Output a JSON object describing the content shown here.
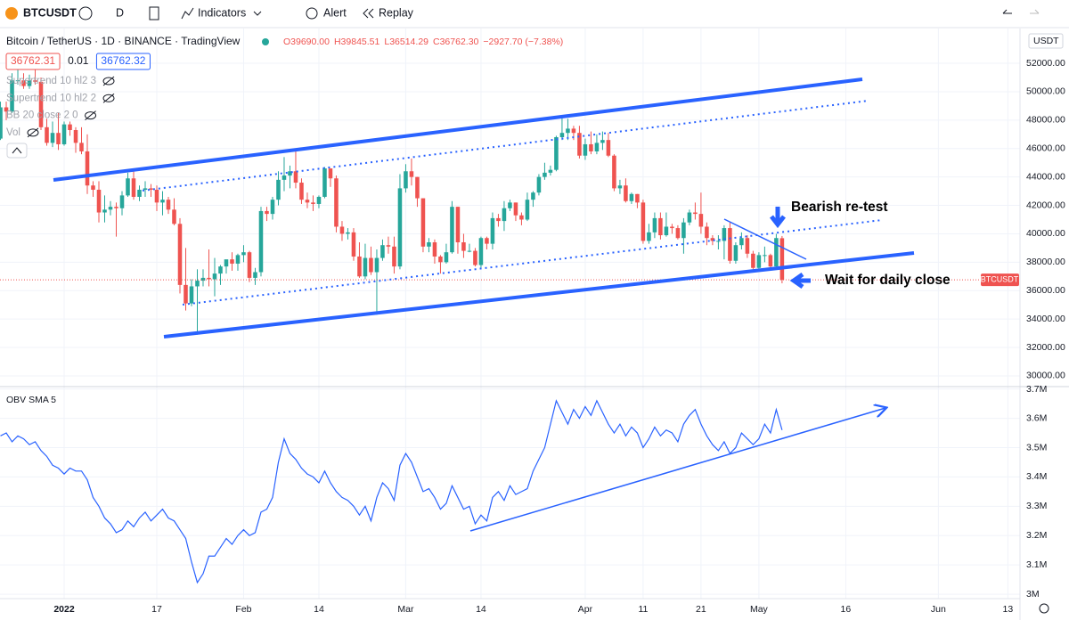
{
  "toolbar": {
    "symbol": "BTCUSDT",
    "interval": "D",
    "indicators": "Indicators",
    "alert": "Alert",
    "replay": "Replay"
  },
  "chart_data": [
    {
      "type": "candlestick",
      "title": "Bitcoin / TetherUS · 1D · BINANCE · TradingView",
      "ohlc_labels": [
        "O39690.00",
        "H39845.51",
        "L36514.29",
        "C36762.30"
      ],
      "change_label": "−2927.70 (−7.38%)",
      "price_badges": [
        "36762.31",
        "0.01",
        "36762.32"
      ],
      "indicators": [
        "Supertrend 10 hl2 3",
        "Supertrend 10 hl2 2",
        "BB 20 close 2 0",
        "Vol"
      ],
      "currency": "USDT",
      "price_tag": "BTCUSDT",
      "annotations": [
        "Bearish re-test",
        "Wait for daily close"
      ],
      "up_color": "#26a69a",
      "down_color": "#ef5350",
      "grid": true,
      "xlim": [
        -11.08,
        165.1
      ],
      "xticks": [
        {
          "value": 0,
          "label": "2022"
        },
        {
          "value": 16,
          "label": "17"
        },
        {
          "value": 31,
          "label": "Feb"
        },
        {
          "value": 44,
          "label": "14"
        },
        {
          "value": 59,
          "label": "Mar"
        },
        {
          "value": 72,
          "label": "14"
        },
        {
          "value": 90,
          "label": "Apr"
        },
        {
          "value": 100,
          "label": "11"
        },
        {
          "value": 110,
          "label": "21"
        },
        {
          "value": 120,
          "label": "May"
        },
        {
          "value": 135,
          "label": "16"
        },
        {
          "value": 151,
          "label": "Jun"
        },
        {
          "value": 163,
          "label": "13"
        }
      ],
      "ylim": [
        29370,
        54260
      ],
      "yticks": [
        {
          "value": 30000,
          "label": "30000.00"
        },
        {
          "value": 32000,
          "label": "32000.00"
        },
        {
          "value": 34000,
          "label": "34000.00"
        },
        {
          "value": 36000,
          "label": "36000.00"
        },
        {
          "value": 38000,
          "label": "38000.00"
        },
        {
          "value": 40000,
          "label": "40000.00"
        },
        {
          "value": 42000,
          "label": "42000.00"
        },
        {
          "value": 44000,
          "label": "44000.00"
        },
        {
          "value": 46000,
          "label": "46000.00"
        },
        {
          "value": 48000,
          "label": "48000.00"
        },
        {
          "value": 50000,
          "label": "50000.00"
        },
        {
          "value": 52000,
          "label": "52000.00"
        }
      ],
      "x": [
        -11,
        -10,
        -9,
        -8,
        -7,
        -6,
        -5,
        -4,
        -3,
        -2,
        -1,
        0,
        1,
        2,
        3,
        4,
        5,
        6,
        7,
        8,
        9,
        10,
        11,
        12,
        13,
        14,
        15,
        16,
        17,
        18,
        19,
        20,
        21,
        22,
        23,
        24,
        25,
        26,
        27,
        28,
        29,
        30,
        31,
        32,
        33,
        34,
        35,
        36,
        37,
        38,
        39,
        40,
        41,
        42,
        43,
        44,
        45,
        46,
        47,
        48,
        49,
        50,
        51,
        52,
        53,
        54,
        55,
        56,
        57,
        58,
        59,
        60,
        61,
        62,
        63,
        64,
        65,
        66,
        67,
        68,
        69,
        70,
        71,
        72,
        73,
        74,
        75,
        76,
        77,
        78,
        79,
        80,
        81,
        82,
        83,
        84,
        85,
        86,
        87,
        88,
        89,
        90,
        91,
        92,
        93,
        94,
        95,
        96,
        97,
        98,
        99,
        100,
        101,
        102,
        103,
        104,
        105,
        106,
        107,
        108,
        109,
        110,
        111,
        112,
        113,
        114,
        115,
        116,
        117,
        118,
        119,
        120,
        121,
        122,
        123,
        124
      ],
      "open": [
        46700,
        48900,
        48600,
        50800,
        50800,
        50400,
        50800,
        50700,
        47500,
        46400,
        47100,
        46300,
        47700,
        47300,
        46400,
        45800,
        43400,
        43100,
        41500,
        41700,
        41900,
        41800,
        42700,
        43900,
        42600,
        43100,
        43200,
        43100,
        42200,
        42400,
        41700,
        40700,
        36400,
        35100,
        36300,
        36700,
        36900,
        36800,
        37200,
        37700,
        38200,
        37900,
        38500,
        38700,
        36900,
        37300,
        41600,
        41400,
        42400,
        43800,
        44100,
        44400,
        43600,
        42400,
        42200,
        42100,
        42600,
        44600,
        43900,
        40500,
        40000,
        40100,
        38400,
        37000,
        38300,
        37300,
        38300,
        39200,
        39100,
        37700,
        43200,
        44400,
        44000,
        42500,
        39100,
        39400,
        38400,
        38000,
        38700,
        41900,
        39400,
        38800,
        38800,
        37800,
        39700,
        39300,
        41100,
        40900,
        41800,
        42200,
        41300,
        41000,
        42400,
        42900,
        44000,
        44300,
        44500,
        46800,
        47100,
        47400,
        47100,
        45500,
        46300,
        45800,
        46400,
        46600,
        45500,
        43200,
        43400,
        42300,
        42800,
        42200,
        39500,
        40100,
        41100,
        39900,
        40500,
        40400,
        39700,
        40800,
        41500,
        41400,
        40500,
        39700,
        39500,
        39500,
        40400,
        38100,
        39200,
        39700,
        38600,
        37600,
        38500,
        38500,
        37700,
        39690
      ],
      "high": [
        49300,
        49300,
        51300,
        51800,
        51300,
        51200,
        52000,
        51000,
        48100,
        47900,
        48500,
        47900,
        47900,
        47500,
        47500,
        47000,
        43700,
        43700,
        42700,
        42300,
        42200,
        43000,
        44300,
        44400,
        43400,
        43700,
        43500,
        43400,
        43000,
        42600,
        42500,
        41100,
        39000,
        36800,
        37500,
        37500,
        38900,
        38300,
        37800,
        38000,
        38700,
        38600,
        39200,
        38800,
        37600,
        41900,
        41900,
        42600,
        44400,
        45400,
        44800,
        45800,
        43900,
        42900,
        42700,
        42700,
        44700,
        44500,
        44100,
        40900,
        40400,
        40400,
        39400,
        39300,
        39100,
        38900,
        39600,
        39800,
        39800,
        44200,
        44900,
        45300,
        44000,
        42500,
        39700,
        39600,
        38500,
        39300,
        42300,
        41900,
        40000,
        39300,
        39000,
        39800,
        39800,
        41500,
        41400,
        42300,
        42400,
        42200,
        41500,
        42900,
        43000,
        44200,
        45000,
        44800,
        46900,
        48200,
        48100,
        47600,
        47600,
        46700,
        47200,
        47000,
        47200,
        47100,
        45600,
        43800,
        43900,
        42900,
        42800,
        42400,
        40700,
        41500,
        41500,
        41500,
        40700,
        40600,
        41100,
        41700,
        42200,
        42900,
        40800,
        39900,
        39900,
        40600,
        40800,
        39400,
        40100,
        39900,
        38800,
        38700,
        39100,
        38600,
        40000,
        39845.51
      ],
      "low": [
        46600,
        48000,
        48500,
        50500,
        50200,
        50200,
        50500,
        47300,
        46200,
        46100,
        45900,
        46200,
        46900,
        45700,
        45600,
        42800,
        42600,
        40800,
        40800,
        41300,
        39800,
        41300,
        42600,
        42400,
        42300,
        42600,
        42600,
        41600,
        41300,
        41400,
        40600,
        35800,
        34600,
        34900,
        32900,
        36300,
        36300,
        35600,
        36400,
        37200,
        37400,
        37400,
        38000,
        36600,
        36400,
        37000,
        40900,
        41000,
        42000,
        43000,
        43200,
        43200,
        42100,
        41800,
        41600,
        41800,
        42500,
        43300,
        40100,
        39500,
        39600,
        38100,
        36900,
        36800,
        37100,
        34300,
        38100,
        38600,
        37200,
        37500,
        42900,
        43400,
        41900,
        38700,
        38700,
        37900,
        37200,
        37900,
        38600,
        38600,
        38300,
        38700,
        37700,
        37600,
        38900,
        38900,
        40500,
        40200,
        41600,
        40900,
        40600,
        40900,
        41900,
        42700,
        43800,
        44100,
        44400,
        46600,
        46600,
        46600,
        45300,
        45200,
        45600,
        45600,
        45900,
        45400,
        43000,
        42800,
        42200,
        42100,
        41800,
        39300,
        39300,
        39700,
        39600,
        39800,
        40000,
        39600,
        38600,
        40600,
        41000,
        40000,
        39200,
        39200,
        38900,
        38200,
        37900,
        37900,
        38900,
        38300,
        37500,
        37400,
        38000,
        37600,
        37600,
        36514.29
      ],
      "close": [
        48900,
        48600,
        50800,
        50800,
        50400,
        50800,
        50700,
        47500,
        46400,
        47100,
        46300,
        47700,
        47300,
        46400,
        45800,
        43400,
        43100,
        41500,
        41700,
        41900,
        41800,
        42700,
        43900,
        42600,
        43100,
        43200,
        43100,
        42200,
        42400,
        41700,
        40700,
        36400,
        35100,
        36300,
        36700,
        36900,
        36800,
        37200,
        37700,
        38200,
        37900,
        38500,
        38700,
        36900,
        37300,
        41600,
        41400,
        42400,
        43800,
        44100,
        44400,
        43600,
        42400,
        42200,
        42100,
        42600,
        44600,
        43900,
        40500,
        40000,
        40100,
        38400,
        37000,
        38300,
        37300,
        38300,
        39200,
        39100,
        37700,
        43200,
        44400,
        44000,
        42500,
        39100,
        39400,
        38400,
        38000,
        38700,
        41900,
        39400,
        38800,
        38800,
        37800,
        39700,
        39300,
        41100,
        40900,
        41800,
        42200,
        41300,
        41000,
        42400,
        42900,
        44000,
        44300,
        44500,
        46800,
        47100,
        47400,
        47100,
        45500,
        46300,
        45800,
        46400,
        46600,
        45500,
        43200,
        43400,
        42300,
        42800,
        42200,
        39500,
        40100,
        41100,
        39900,
        40500,
        40400,
        39700,
        40800,
        41500,
        41400,
        40500,
        39700,
        39500,
        39500,
        40400,
        38100,
        39200,
        39700,
        38600,
        37600,
        38500,
        38500,
        37700,
        39700,
        36762.3
      ]
    },
    {
      "type": "line",
      "title": "OBV SMA 5",
      "color": "#2962ff",
      "grid": true,
      "xlim": [
        -11.08,
        165.1
      ],
      "ylim": [
        2.985,
        3.705
      ],
      "yticks": [
        {
          "value": 3.0,
          "label": "3M"
        },
        {
          "value": 3.1,
          "label": "3.1M"
        },
        {
          "value": 3.2,
          "label": "3.2M"
        },
        {
          "value": 3.3,
          "label": "3.3M"
        },
        {
          "value": 3.4,
          "label": "3.4M"
        },
        {
          "value": 3.5,
          "label": "3.5M"
        },
        {
          "value": 3.6,
          "label": "3.6M"
        },
        {
          "value": 3.7,
          "label": "3.7M"
        }
      ],
      "x": [
        -11,
        -10,
        -9,
        -8,
        -7,
        -6,
        -5,
        -4,
        -3,
        -2,
        -1,
        0,
        1,
        2,
        3,
        4,
        5,
        6,
        7,
        8,
        9,
        10,
        11,
        12,
        13,
        14,
        15,
        16,
        17,
        18,
        19,
        20,
        21,
        22,
        23,
        24,
        25,
        26,
        27,
        28,
        29,
        30,
        31,
        32,
        33,
        34,
        35,
        36,
        37,
        38,
        39,
        40,
        41,
        42,
        43,
        44,
        45,
        46,
        47,
        48,
        49,
        50,
        51,
        52,
        53,
        54,
        55,
        56,
        57,
        58,
        59,
        60,
        61,
        62,
        63,
        64,
        65,
        66,
        67,
        68,
        69,
        70,
        71,
        72,
        73,
        74,
        75,
        76,
        77,
        78,
        79,
        80,
        81,
        82,
        83,
        84,
        85,
        86,
        87,
        88,
        89,
        90,
        91,
        92,
        93,
        94,
        95,
        96,
        97,
        98,
        99,
        100,
        101,
        102,
        103,
        104,
        105,
        106,
        107,
        108,
        109,
        110,
        111,
        112,
        113,
        114,
        115,
        116,
        117,
        118,
        119,
        120,
        121,
        122,
        123,
        124
      ],
      "values": [
        3.54,
        3.55,
        3.52,
        3.54,
        3.53,
        3.51,
        3.52,
        3.49,
        3.47,
        3.44,
        3.43,
        3.41,
        3.43,
        3.42,
        3.42,
        3.39,
        3.33,
        3.3,
        3.26,
        3.24,
        3.21,
        3.22,
        3.25,
        3.23,
        3.26,
        3.28,
        3.25,
        3.27,
        3.29,
        3.26,
        3.25,
        3.22,
        3.19,
        3.11,
        3.04,
        3.07,
        3.13,
        3.13,
        3.16,
        3.19,
        3.17,
        3.2,
        3.22,
        3.2,
        3.21,
        3.28,
        3.29,
        3.33,
        3.45,
        3.53,
        3.48,
        3.46,
        3.43,
        3.41,
        3.4,
        3.38,
        3.42,
        3.38,
        3.35,
        3.33,
        3.32,
        3.3,
        3.27,
        3.3,
        3.25,
        3.33,
        3.38,
        3.36,
        3.32,
        3.44,
        3.48,
        3.45,
        3.4,
        3.35,
        3.36,
        3.33,
        3.29,
        3.31,
        3.37,
        3.33,
        3.29,
        3.3,
        3.24,
        3.27,
        3.25,
        3.33,
        3.35,
        3.32,
        3.37,
        3.34,
        3.35,
        3.36,
        3.42,
        3.46,
        3.5,
        3.58,
        3.66,
        3.62,
        3.58,
        3.63,
        3.6,
        3.64,
        3.61,
        3.66,
        3.62,
        3.58,
        3.55,
        3.58,
        3.54,
        3.57,
        3.55,
        3.5,
        3.53,
        3.57,
        3.54,
        3.56,
        3.55,
        3.52,
        3.58,
        3.61,
        3.63,
        3.58,
        3.54,
        3.51,
        3.49,
        3.52,
        3.48,
        3.5,
        3.55,
        3.53,
        3.51,
        3.53,
        3.58,
        3.55,
        3.63,
        3.56
      ]
    }
  ]
}
